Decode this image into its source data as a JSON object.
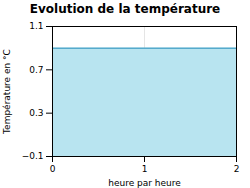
{
  "chart_data": {
    "type": "area",
    "title": "Evolution de la température",
    "xlabel": "heure par heure",
    "ylabel": "Température en °C",
    "x": [
      0,
      2
    ],
    "series": [
      {
        "type": "area",
        "color": "#b8e4f0",
        "values": [
          0.9,
          0.9
        ]
      },
      {
        "type": "line",
        "color": "#55aacc",
        "values": [
          0.9,
          0.9
        ]
      }
    ],
    "xlim": [
      0,
      2
    ],
    "ylim": [
      -0.1,
      1.1
    ],
    "xticks": [
      0,
      1,
      2
    ],
    "yticks": [
      -0.1,
      0.3,
      0.7,
      1.1
    ],
    "grid": true
  }
}
